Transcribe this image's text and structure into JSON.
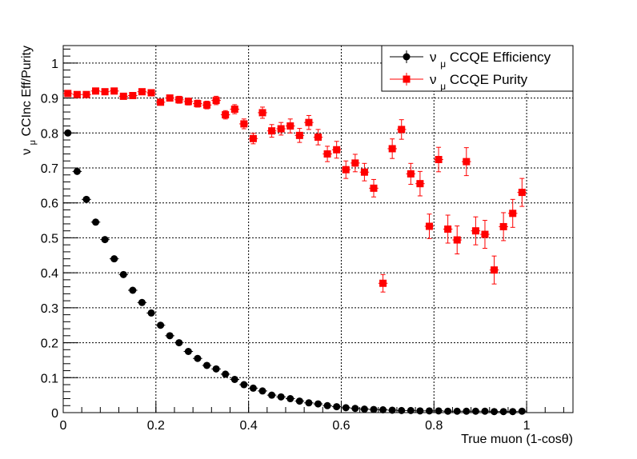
{
  "chart_data": {
    "type": "scatter",
    "xlabel": "True muon (1-cosθ)",
    "ylabel_main": "ν",
    "ylabel_sub": "μ",
    "ylabel_rest": " CCInc Eff/Purity",
    "xlim": [
      0,
      1.1
    ],
    "ylim": [
      0,
      1.05
    ],
    "xticks": [
      0,
      0.2,
      0.4,
      0.6,
      0.8,
      1
    ],
    "xtick_labels": [
      "0",
      "0.2",
      "0.4",
      "0.6",
      "0.8",
      "1"
    ],
    "yticks": [
      0,
      0.1,
      0.2,
      0.3,
      0.4,
      0.5,
      0.6,
      0.7,
      0.8,
      0.9,
      1
    ],
    "ytick_labels": [
      "0",
      "0.1",
      "0.2",
      "0.3",
      "0.4",
      "0.5",
      "0.6",
      "0.7",
      "0.8",
      "0.9",
      "1"
    ],
    "grid": true,
    "legend_position": "top-right",
    "x_bin_half_width": 0.01,
    "series": [
      {
        "legend_main": "ν",
        "legend_sub": "μ",
        "legend_rest": "CCQE Efficiency",
        "color": "#000000",
        "marker": "circle",
        "x": [
          0.01,
          0.03,
          0.05,
          0.07,
          0.09,
          0.11,
          0.13,
          0.15,
          0.17,
          0.19,
          0.21,
          0.23,
          0.25,
          0.27,
          0.29,
          0.31,
          0.33,
          0.35,
          0.37,
          0.39,
          0.41,
          0.43,
          0.45,
          0.47,
          0.49,
          0.51,
          0.53,
          0.55,
          0.57,
          0.59,
          0.61,
          0.63,
          0.65,
          0.67,
          0.69,
          0.71,
          0.73,
          0.75,
          0.77,
          0.79,
          0.81,
          0.83,
          0.85,
          0.87,
          0.89,
          0.91,
          0.93,
          0.95,
          0.97,
          0.99
        ],
        "y": [
          0.8,
          0.69,
          0.61,
          0.545,
          0.495,
          0.44,
          0.395,
          0.35,
          0.315,
          0.285,
          0.25,
          0.22,
          0.2,
          0.175,
          0.155,
          0.135,
          0.125,
          0.11,
          0.095,
          0.08,
          0.07,
          0.062,
          0.05,
          0.045,
          0.04,
          0.033,
          0.028,
          0.025,
          0.02,
          0.017,
          0.014,
          0.012,
          0.01,
          0.009,
          0.008,
          0.007,
          0.006,
          0.006,
          0.005,
          0.005,
          0.005,
          0.004,
          0.004,
          0.004,
          0.004,
          0.004,
          0.003,
          0.003,
          0.003,
          0.004
        ],
        "yerr": [
          0.006,
          0.006,
          0.006,
          0.006,
          0.006,
          0.006,
          0.006,
          0.006,
          0.006,
          0.006,
          0.005,
          0.005,
          0.005,
          0.005,
          0.005,
          0.005,
          0.005,
          0.005,
          0.004,
          0.004,
          0.004,
          0.004,
          0.004,
          0.004,
          0.003,
          0.003,
          0.003,
          0.003,
          0.003,
          0.003,
          0.002,
          0.002,
          0.002,
          0.002,
          0.002,
          0.002,
          0.002,
          0.002,
          0.002,
          0.002,
          0.002,
          0.002,
          0.002,
          0.002,
          0.002,
          0.002,
          0.002,
          0.002,
          0.002,
          0.002
        ]
      },
      {
        "legend_main": "ν",
        "legend_sub": "μ",
        "legend_rest": "CCQE Purity",
        "color": "#ff0000",
        "marker": "square",
        "x": [
          0.01,
          0.03,
          0.05,
          0.07,
          0.09,
          0.11,
          0.13,
          0.15,
          0.17,
          0.19,
          0.21,
          0.23,
          0.25,
          0.27,
          0.29,
          0.31,
          0.33,
          0.35,
          0.37,
          0.39,
          0.41,
          0.43,
          0.45,
          0.47,
          0.49,
          0.51,
          0.53,
          0.55,
          0.57,
          0.59,
          0.61,
          0.63,
          0.65,
          0.67,
          0.69,
          0.71,
          0.73,
          0.75,
          0.77,
          0.79,
          0.81,
          0.83,
          0.85,
          0.87,
          0.89,
          0.91,
          0.93,
          0.95,
          0.97,
          0.99
        ],
        "y": [
          0.913,
          0.91,
          0.91,
          0.92,
          0.918,
          0.92,
          0.905,
          0.907,
          0.918,
          0.915,
          0.888,
          0.9,
          0.895,
          0.89,
          0.884,
          0.88,
          0.893,
          0.852,
          0.868,
          0.826,
          0.784,
          0.858,
          0.806,
          0.812,
          0.82,
          0.793,
          0.83,
          0.788,
          0.74,
          0.752,
          0.695,
          0.714,
          0.688,
          0.642,
          0.37,
          0.755,
          0.81,
          0.683,
          0.655,
          0.533,
          0.724,
          0.525,
          0.494,
          0.718,
          0.52,
          0.51,
          0.408,
          0.532,
          0.57,
          0.63
        ],
        "yerr": [
          0.006,
          0.006,
          0.006,
          0.006,
          0.007,
          0.007,
          0.007,
          0.008,
          0.008,
          0.008,
          0.009,
          0.009,
          0.01,
          0.01,
          0.01,
          0.011,
          0.012,
          0.012,
          0.013,
          0.014,
          0.015,
          0.016,
          0.018,
          0.018,
          0.02,
          0.02,
          0.02,
          0.022,
          0.022,
          0.024,
          0.025,
          0.025,
          0.025,
          0.025,
          0.025,
          0.028,
          0.028,
          0.03,
          0.035,
          0.035,
          0.035,
          0.04,
          0.04,
          0.04,
          0.04,
          0.04,
          0.04,
          0.04,
          0.04,
          0.04
        ]
      }
    ]
  }
}
